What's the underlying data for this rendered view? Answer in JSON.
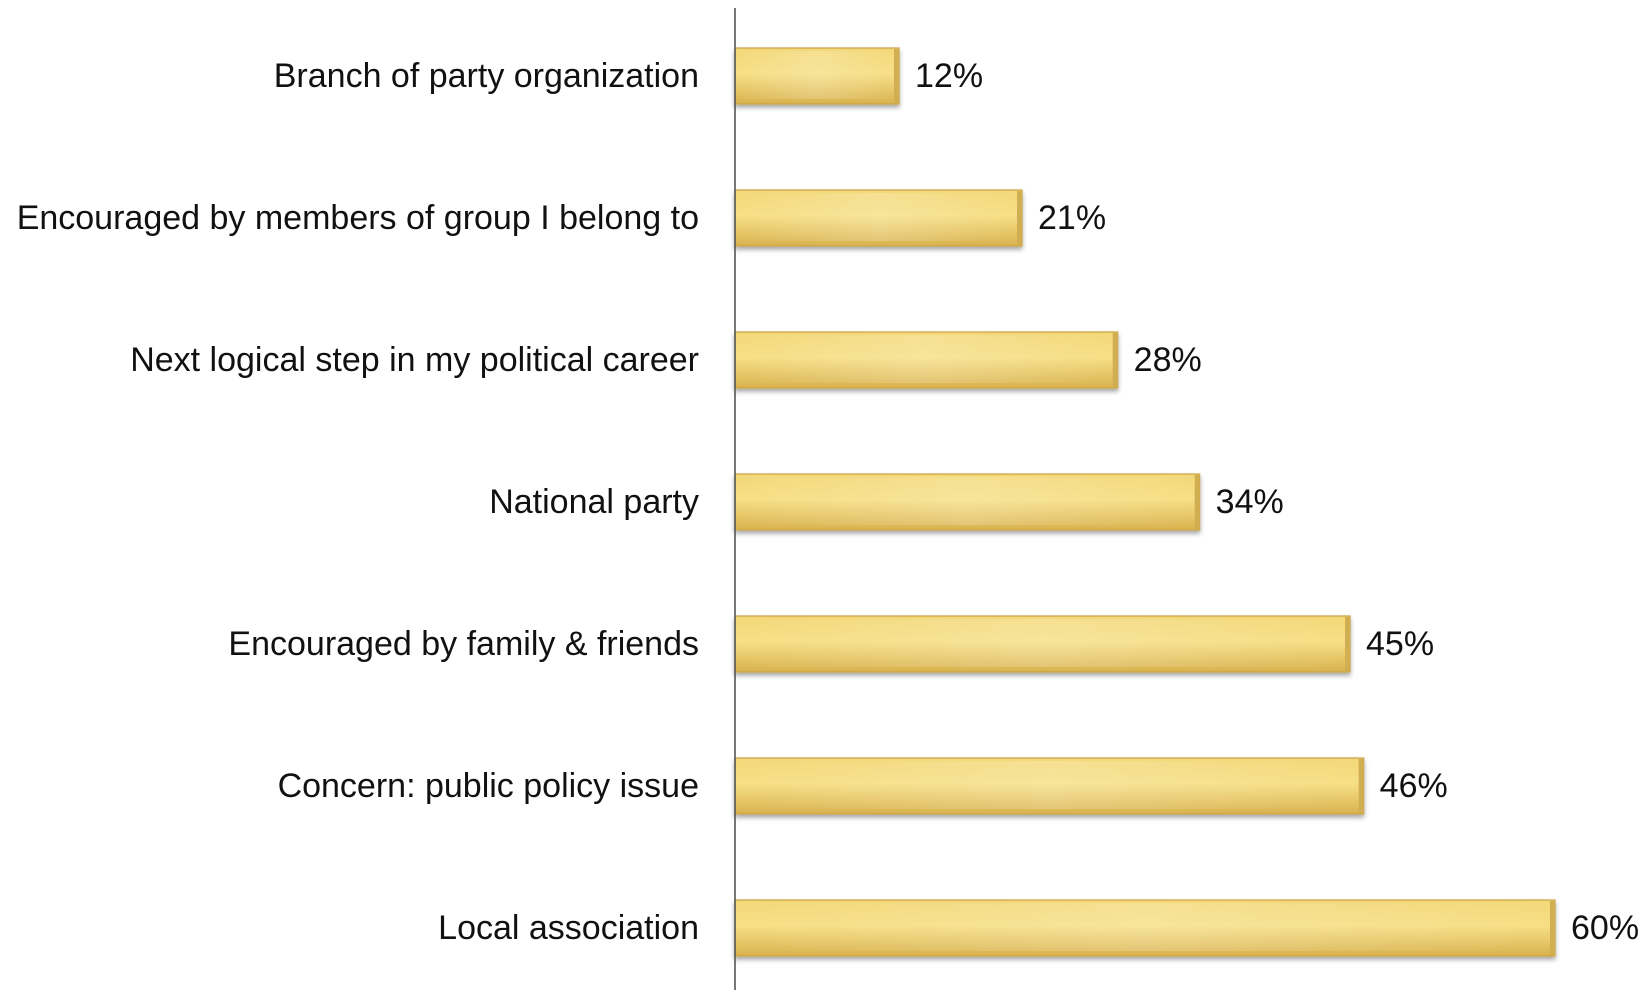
{
  "chart_data": {
    "type": "bar",
    "orientation": "horizontal",
    "title": "",
    "xlabel": "",
    "ylabel": "",
    "categories": [
      "Branch of party organization",
      "Encouraged by members of group I belong to",
      "Next logical step in my political career",
      "National party",
      "Encouraged by family & friends",
      "Concern: public policy issue",
      "Local association"
    ],
    "values": [
      12,
      21,
      28,
      34,
      45,
      46,
      60
    ],
    "value_labels": [
      "12%",
      "21%",
      "28%",
      "34%",
      "45%",
      "46%",
      "60%"
    ],
    "unit": "%",
    "xlim": [
      0,
      60
    ],
    "grid": false,
    "legend": "none",
    "bar_color": "#E8C75A",
    "bar_highlight_color": "#F6DE84",
    "axis_color": "#555555"
  }
}
